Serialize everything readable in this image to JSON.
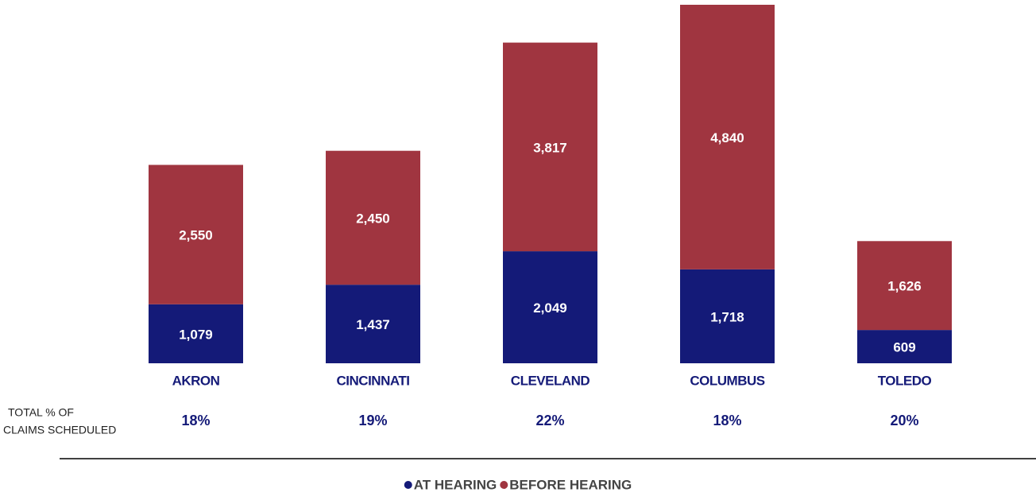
{
  "chart_data": {
    "type": "stacked_bar",
    "categories": [
      "AKRON",
      "CINCINNATI",
      "CLEVELAND",
      "COLUMBUS",
      "TOLEDO"
    ],
    "series": [
      {
        "name": "AT HEARING",
        "color": "#141a78",
        "values": [
          1079,
          1437,
          2049,
          1718,
          609
        ],
        "value_labels": [
          "1,079",
          "1,437",
          "2,049",
          "1,718",
          "609"
        ]
      },
      {
        "name": "BEFORE HEARING",
        "color": "#a03540",
        "values": [
          2550,
          2450,
          3817,
          4840,
          1626
        ],
        "value_labels": [
          "2,550",
          "2,450",
          "3,817",
          "4,840",
          "1,626"
        ]
      }
    ],
    "percent_row": {
      "label": [
        "TOTAL % OF",
        "CLAIMS SCHEDULED"
      ],
      "values": [
        18,
        19,
        22,
        18,
        20
      ],
      "value_labels": [
        "18%",
        "19%",
        "22%",
        "18%",
        "20%"
      ]
    }
  }
}
